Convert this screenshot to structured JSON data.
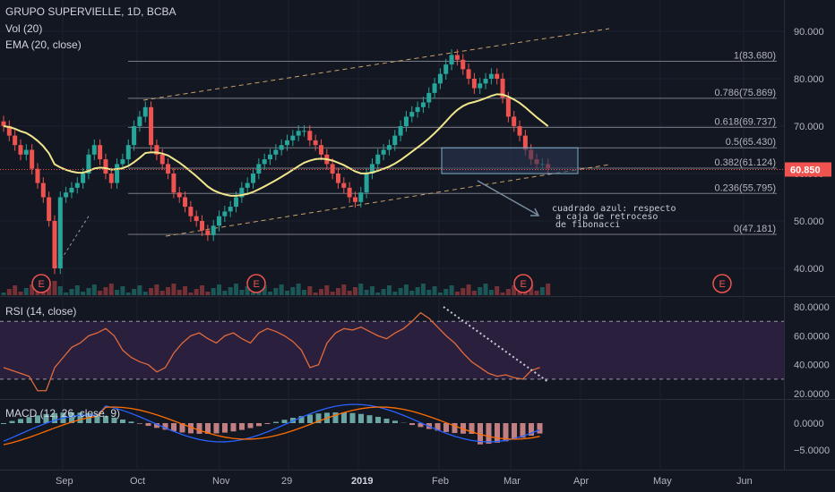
{
  "header": {
    "symbol_line": "GRUPO SUPERVIELLE, 1D, BCBA",
    "volume_label": "Vol (20)",
    "ema_label": "EMA (20, close)"
  },
  "chart_data": [
    {
      "type": "candlestick",
      "title": "GRUPO SUPERVIELLE, 1D, BCBA",
      "x_ticks": [
        "Sep",
        "Oct",
        "Nov",
        "29",
        "2019",
        "Feb",
        "Mar",
        "Apr",
        "May",
        "Jun"
      ],
      "y_ticks": [
        "40.000",
        "50.000",
        "60.000",
        "70.000",
        "80.000",
        "90.000"
      ],
      "ylim": [
        35,
        95
      ],
      "last_price": "60.850",
      "close_series_approx": [
        70,
        68,
        66,
        64,
        65,
        61,
        58,
        55,
        50,
        40,
        55,
        56,
        57,
        58,
        60,
        64,
        66,
        63,
        60,
        58,
        62,
        63,
        66,
        70,
        72,
        74,
        66,
        64,
        62,
        60,
        56,
        55,
        53,
        51,
        50,
        48,
        47,
        49,
        51,
        52,
        53,
        55,
        57,
        58,
        60,
        62,
        63,
        64,
        65,
        66,
        67,
        68,
        69,
        69,
        67,
        66,
        64,
        62,
        60,
        58,
        57,
        55,
        54,
        56,
        60,
        62,
        64,
        65,
        66,
        68,
        70,
        72,
        73,
        74,
        75,
        77,
        79,
        81,
        83,
        85,
        84,
        82,
        80,
        78,
        79,
        80,
        81,
        80,
        76,
        72,
        70,
        68,
        65,
        63,
        62,
        62,
        61
      ],
      "ema_label": "EMA (20, close)",
      "fibonacci_levels": [
        {
          "ratio": "1",
          "price": 83.68,
          "label": "1(83.680)"
        },
        {
          "ratio": "0.786",
          "price": 75.869,
          "label": "0.786(75.869)"
        },
        {
          "ratio": "0.618",
          "price": 69.737,
          "label": "0.618(69.737)"
        },
        {
          "ratio": "0.5",
          "price": 65.43,
          "label": "0.5(65.430)"
        },
        {
          "ratio": "0.382",
          "price": 61.124,
          "label": "0.382(61.124)"
        },
        {
          "ratio": "0.236",
          "price": 55.795,
          "label": "0.236(55.795)"
        },
        {
          "ratio": "0",
          "price": 47.181,
          "label": "0(47.181)"
        }
      ],
      "annotation": [
        "cuadrado azul: respecto",
        "a caja de retroceso",
        "de fibonacci"
      ],
      "earnings_markers": [
        "E",
        "E",
        "E",
        "E"
      ]
    },
    {
      "type": "line",
      "title": "RSI (14, close)",
      "y_ticks": [
        "20.0000",
        "40.0000",
        "60.0000",
        "80.0000"
      ],
      "ylim": [
        20,
        80
      ],
      "bands": [
        70,
        30
      ],
      "values_approx": [
        38,
        36,
        34,
        32,
        22,
        22,
        38,
        45,
        52,
        55,
        60,
        62,
        65,
        60,
        50,
        45,
        42,
        40,
        35,
        38,
        48,
        55,
        60,
        62,
        58,
        55,
        60,
        62,
        58,
        55,
        62,
        65,
        63,
        60,
        56,
        50,
        38,
        40,
        55,
        62,
        65,
        64,
        66,
        63,
        60,
        58,
        62,
        65,
        70,
        76,
        72,
        66,
        60,
        55,
        48,
        42,
        38,
        34,
        32,
        33,
        31,
        30,
        36,
        38
      ]
    },
    {
      "type": "bar",
      "title": "MACD (12, 26, close, 9)",
      "y_ticks": [
        "0.0000",
        "−5.0000"
      ],
      "ylim": [
        -7,
        3
      ]
    }
  ],
  "price_axis": {
    "last_price": "60.850"
  },
  "rsi": {
    "label": "RSI (14, close)"
  },
  "macd": {
    "label": "MACD (12, 26, close, 9)"
  },
  "colors": {
    "background": "#131722",
    "up": "#26a69a",
    "down": "#ef5350",
    "ema": "#f0e68c",
    "rsi_line": "#e06a3b",
    "rsi_band_fill": "#2a1f3d",
    "macd_line": "#2962ff",
    "signal_line": "#ff6d00",
    "fib_line": "#787b86",
    "channel": "#c8a06a",
    "box": "#4a78a8"
  }
}
